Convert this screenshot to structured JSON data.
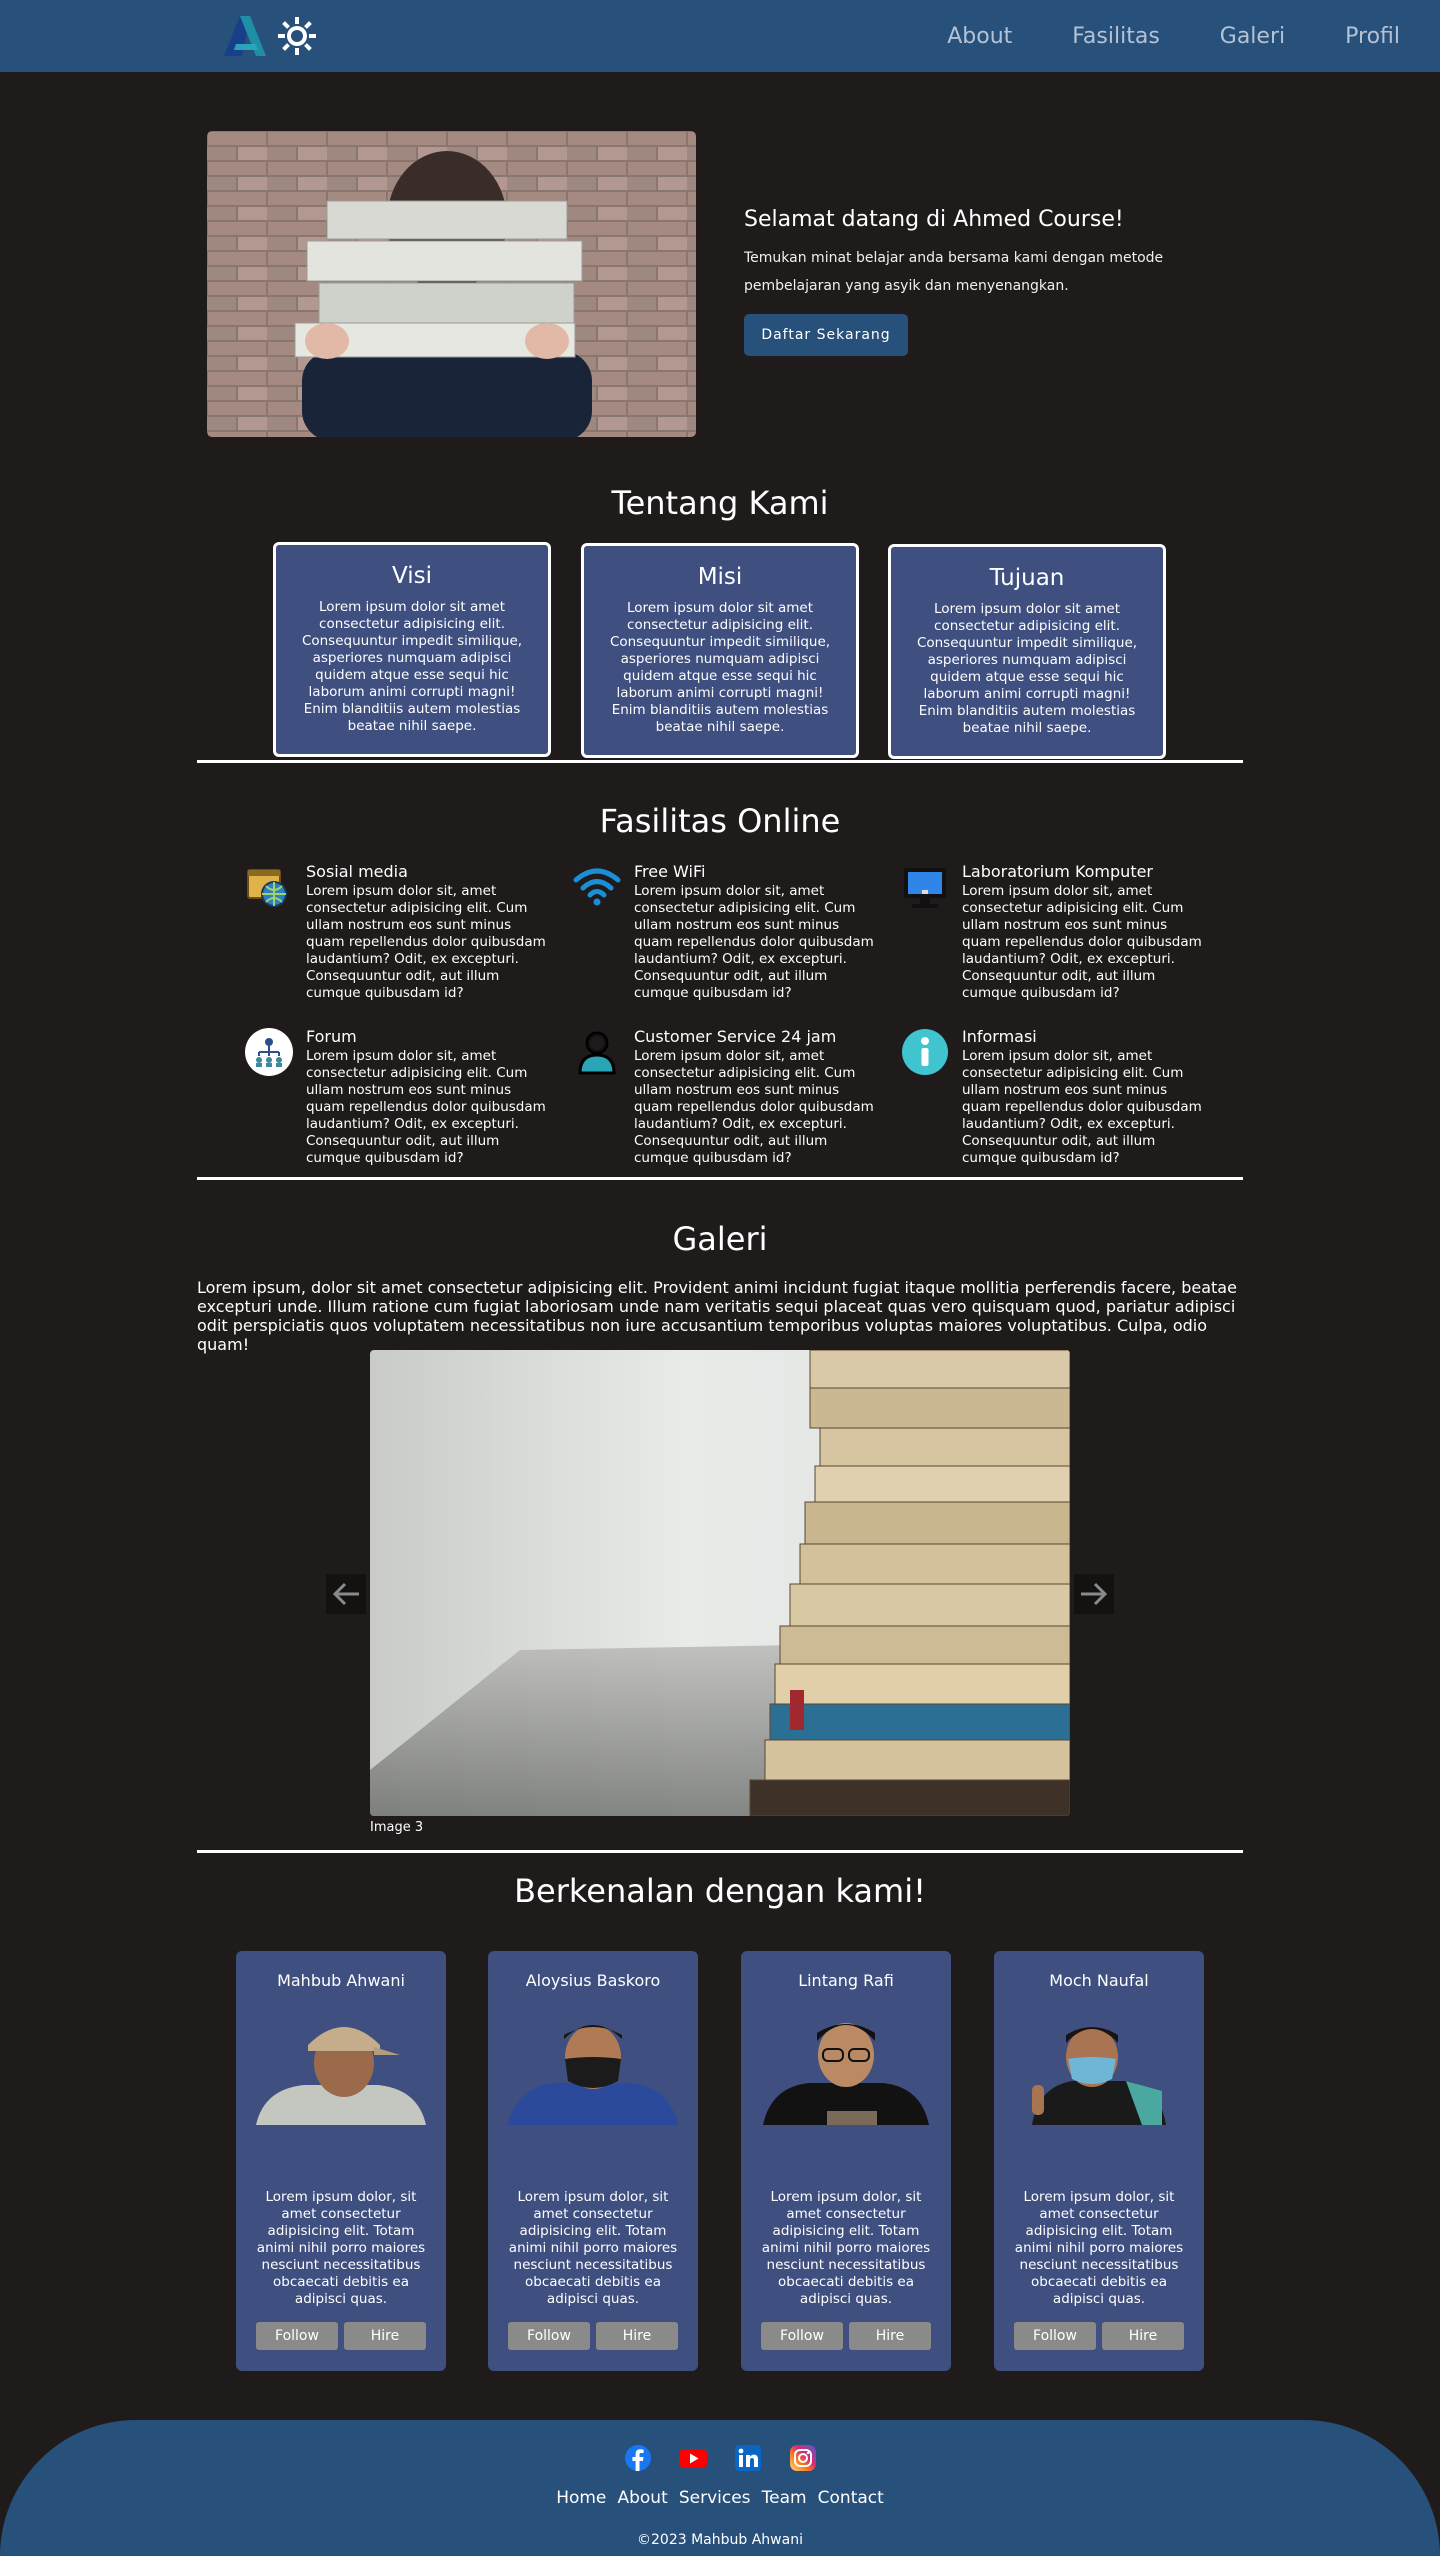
{
  "navbar": {
    "links": [
      "About",
      "Fasilitas",
      "Galeri",
      "Profil"
    ]
  },
  "hero": {
    "title": "Selamat datang di Ahmed Course!",
    "description": "Temukan minat belajar anda bersama kami dengan metode pembelajaran yang asyik dan menyenangkan.",
    "button_label": "Daftar Sekarang"
  },
  "about": {
    "title": "Tentang Kami",
    "cards": [
      {
        "title": "Visi",
        "text": "Lorem ipsum dolor sit amet consectetur adipisicing elit. Consequuntur impedit similique, asperiores numquam adipisci quidem atque esse sequi hic laborum animi corrupti magni! Enim blanditiis autem molestias beatae nihil saepe."
      },
      {
        "title": "Misi",
        "text": "Lorem ipsum dolor sit amet consectetur adipisicing elit. Consequuntur impedit similique, asperiores numquam adipisci quidem atque esse sequi hic laborum animi corrupti magni! Enim blanditiis autem molestias beatae nihil saepe."
      },
      {
        "title": "Tujuan",
        "text": "Lorem ipsum dolor sit amet consectetur adipisicing elit. Consequuntur impedit similique, asperiores numquam adipisci quidem atque esse sequi hic laborum animi corrupti magni! Enim blanditiis autem molestias beatae nihil saepe."
      }
    ]
  },
  "facilities": {
    "title": "Fasilitas Online",
    "items": [
      {
        "title": "Sosial media",
        "icon": "social-media-icon",
        "text": "Lorem ipsum dolor sit, amet consectetur adipisicing elit. Cum ullam nostrum eos sunt minus quam repellendus dolor quibusdam laudantium? Odit, ex excepturi. Consequuntur odit, aut illum cumque quibusdam id?"
      },
      {
        "title": "Free WiFi",
        "icon": "wifi-icon",
        "text": "Lorem ipsum dolor sit, amet consectetur adipisicing elit. Cum ullam nostrum eos sunt minus quam repellendus dolor quibusdam laudantium? Odit, ex excepturi. Consequuntur odit, aut illum cumque quibusdam id?"
      },
      {
        "title": "Laboratorium Komputer",
        "icon": "computer-icon",
        "text": "Lorem ipsum dolor sit, amet consectetur adipisicing elit. Cum ullam nostrum eos sunt minus quam repellendus dolor quibusdam laudantium? Odit, ex excepturi. Consequuntur odit, aut illum cumque quibusdam id?"
      },
      {
        "title": "Forum",
        "icon": "forum-icon",
        "text": "Lorem ipsum dolor sit, amet consectetur adipisicing elit. Cum ullam nostrum eos sunt minus quam repellendus dolor quibusdam laudantium? Odit, ex excepturi. Consequuntur odit, aut illum cumque quibusdam id?"
      },
      {
        "title": "Customer Service 24 jam",
        "icon": "customer-service-icon",
        "text": "Lorem ipsum dolor sit, amet consectetur adipisicing elit. Cum ullam nostrum eos sunt minus quam repellendus dolor quibusdam laudantium? Odit, ex excepturi. Consequuntur odit, aut illum cumque quibusdam id?"
      },
      {
        "title": "Informasi",
        "icon": "info-icon",
        "text": "Lorem ipsum dolor sit, amet consectetur adipisicing elit. Cum ullam nostrum eos sunt minus quam repellendus dolor quibusdam laudantium? Odit, ex excepturi. Consequuntur odit, aut illum cumque quibusdam id?"
      }
    ]
  },
  "gallery": {
    "title": "Galeri",
    "text": "Lorem ipsum, dolor sit amet consectetur adipisicing elit. Provident animi incidunt fugiat itaque mollitia perferendis facere, beatae excepturi unde. Illum ratione cum fugiat laboriosam unde nam veritatis sequi placeat quas vero quisquam quod, pariatur adipisci odit perspiciatis quos voluptatem necessitatibus non iure accusantium temporibus voluptas maiores voluptatibus. Culpa, odio quam!",
    "caption": "Image 3"
  },
  "team": {
    "title": "Berkenalan dengan kami!",
    "members": [
      {
        "name": "Mahbub Ahwani",
        "text": "Lorem ipsum dolor, sit amet consectetur adipisicing elit. Totam animi nihil porro maiores nesciunt necessitatibus obcaecati debitis ea adipisci quas."
      },
      {
        "name": "Aloysius Baskoro",
        "text": "Lorem ipsum dolor, sit amet consectetur adipisicing elit. Totam animi nihil porro maiores nesciunt necessitatibus obcaecati debitis ea adipisci quas."
      },
      {
        "name": "Lintang Rafi",
        "text": "Lorem ipsum dolor, sit amet consectetur adipisicing elit. Totam animi nihil porro maiores nesciunt necessitatibus obcaecati debitis ea adipisci quas."
      },
      {
        "name": "Moch Naufal",
        "text": "Lorem ipsum dolor, sit amet consectetur adipisicing elit. Totam animi nihil porro maiores nesciunt necessitatibus obcaecati debitis ea adipisci quas."
      }
    ],
    "follow_label": "Follow",
    "hire_label": "Hire"
  },
  "footer": {
    "social_icons": [
      "facebook-icon",
      "youtube-icon",
      "linkedin-icon",
      "instagram-icon"
    ],
    "links": [
      "Home",
      "About",
      "Services",
      "Team",
      "Contact"
    ],
    "copyright": "©2023 Mahbub Ahwani"
  },
  "colors": {
    "background": "#1f1b1b",
    "navbar": "#27507a",
    "card": "#3e4f80",
    "button_gray": "#8a8a8a"
  }
}
